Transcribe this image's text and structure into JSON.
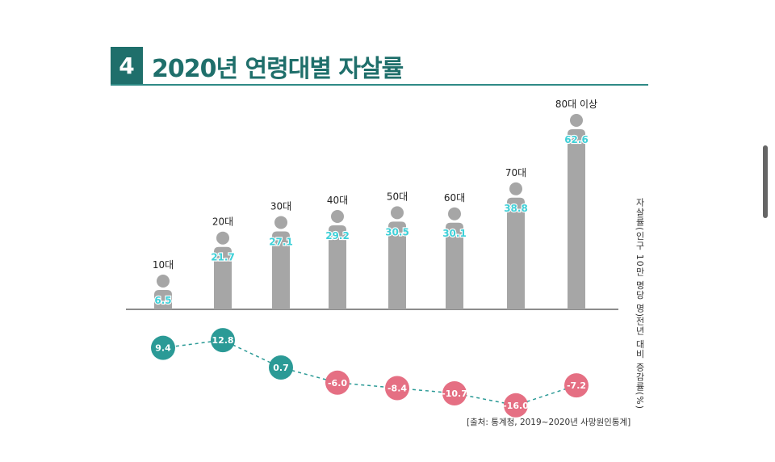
{
  "header": {
    "number": "4",
    "title": "2020년 연령대별 자살률"
  },
  "chart_data": {
    "type": "bar",
    "title": "2020년 연령대별 자살률",
    "categories": [
      "10대",
      "20대",
      "30대",
      "40대",
      "50대",
      "60대",
      "70대",
      "80대 이상"
    ],
    "series": [
      {
        "name": "자살률(인구 10만 명당 명)",
        "values": [
          6.5,
          21.7,
          27.1,
          29.2,
          30.5,
          30.1,
          38.8,
          62.6
        ]
      },
      {
        "name": "전년 대비 증감률(%)",
        "values": [
          9.4,
          12.8,
          0.7,
          -6.0,
          -8.4,
          -10.7,
          -16.0,
          -7.2
        ]
      }
    ],
    "rate_value_labels": [
      "6.5",
      "21.7",
      "27.1",
      "29.2",
      "30.5",
      "30.1",
      "38.8",
      "62.6"
    ],
    "change_value_labels": [
      "9.4",
      "12.8",
      "0.7",
      "-6.0",
      "-8.4",
      "-10.7",
      "-16.0",
      "-7.2"
    ],
    "ylabel_rate": "자살률(인구 10만 명당 명)",
    "ylabel_change": "전년 대비 증감률(%)",
    "positive_color": "#2b9a96",
    "negative_color": "#e56f83",
    "bar_color": "#a6a6a6",
    "value_text_color": "#3fd0d8"
  },
  "source": "[출처: 통계청, 2019~2020년 사망원인통계]"
}
